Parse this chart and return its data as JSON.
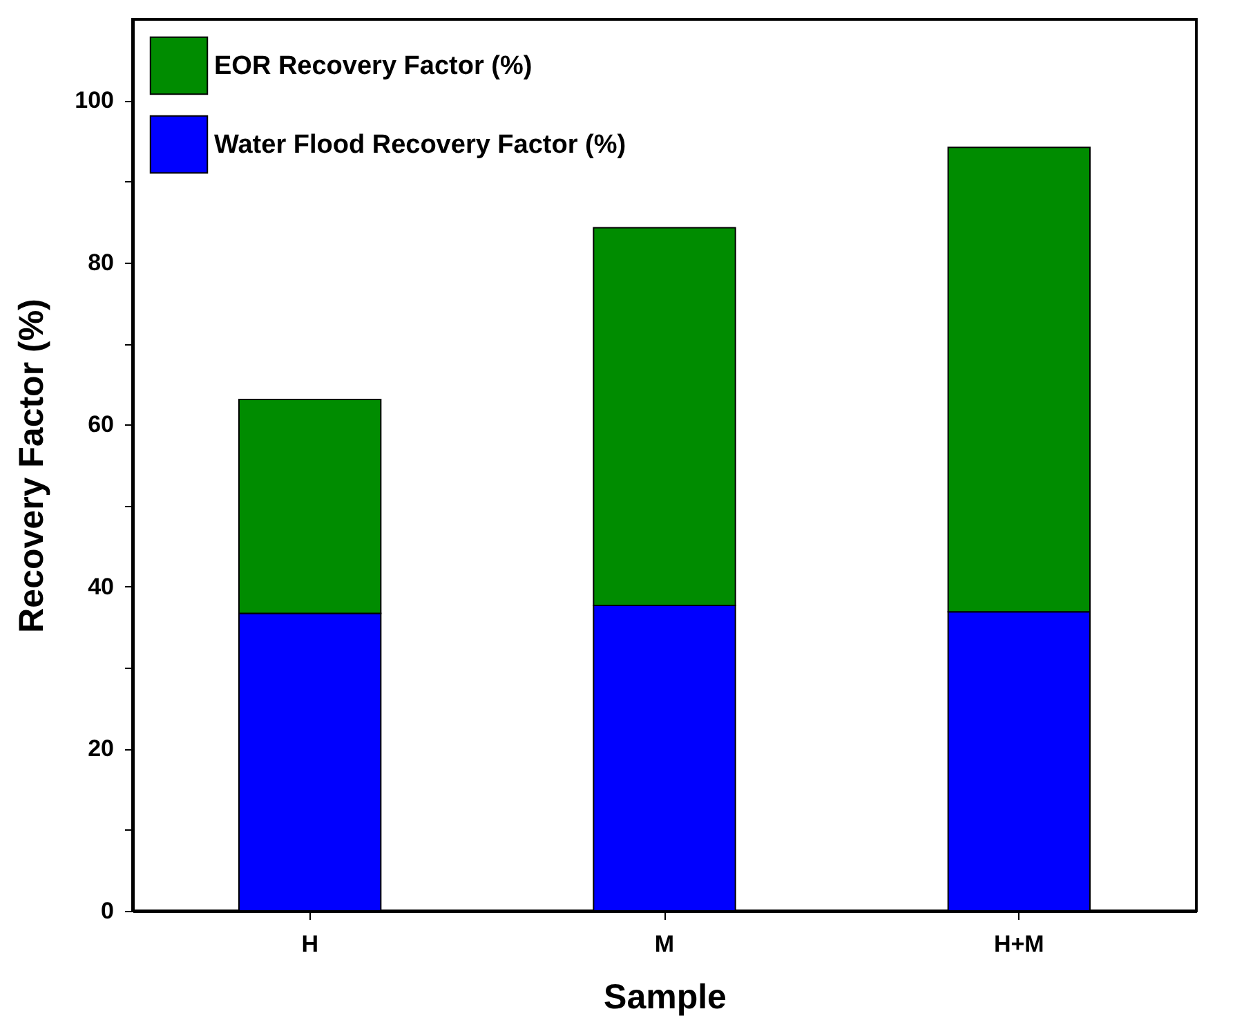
{
  "chart_data": {
    "type": "bar",
    "stacked": true,
    "xlabel": "Sample",
    "ylabel": "Recovery Factor (%)",
    "categories": [
      "H",
      "M",
      "H+M"
    ],
    "series": [
      {
        "name": "Water Flood Recovery Factor (%)",
        "color": "#0000ff",
        "values": [
          36.7,
          37.7,
          36.9
        ]
      },
      {
        "name": "EOR Recovery Factor (%)",
        "color": "#008c00",
        "values": [
          26.4,
          46.6,
          57.3
        ]
      }
    ],
    "ylim": [
      0,
      110
    ],
    "yticks": [
      0,
      {
        "value": 10,
        "label": null
      },
      20,
      {
        "value": 30,
        "label": null
      },
      40,
      {
        "value": 50,
        "label": null
      },
      60,
      {
        "value": 70,
        "label": null
      },
      80,
      {
        "value": 90,
        "label": null
      },
      100
    ],
    "grid": false,
    "legend": "top left"
  }
}
